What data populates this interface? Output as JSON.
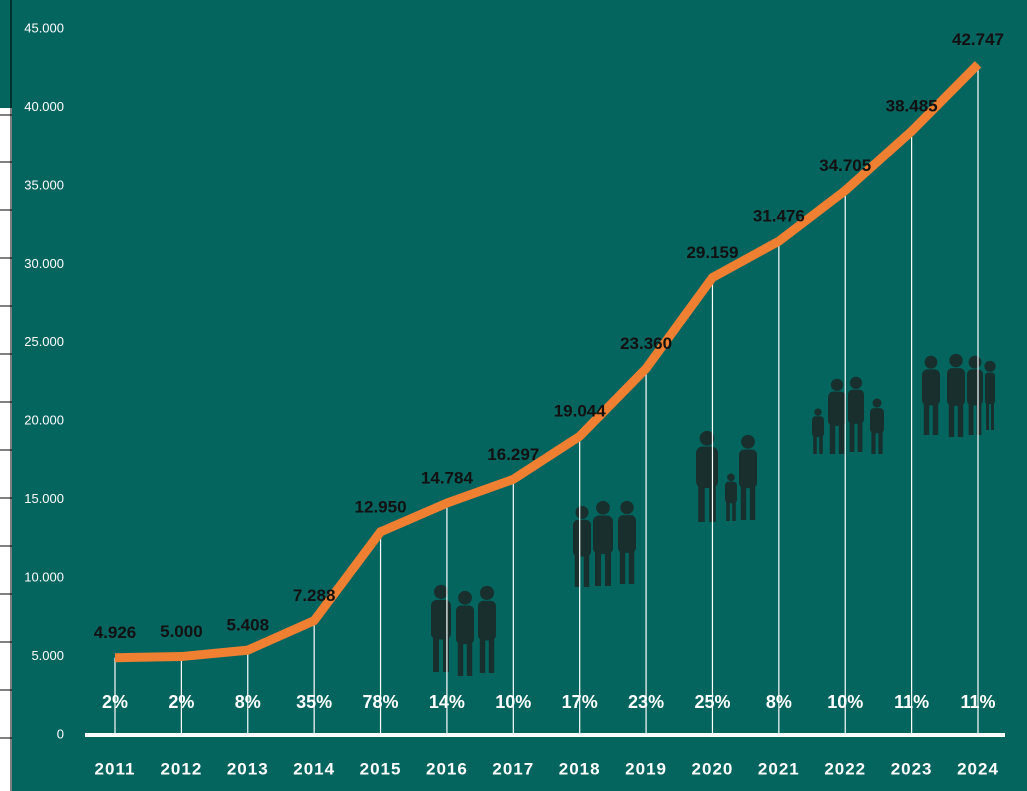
{
  "chart_data": {
    "type": "line",
    "background": "#04645e",
    "categories": [
      "2011",
      "2012",
      "2013",
      "2014",
      "2015",
      "2016",
      "2017",
      "2018",
      "2019",
      "2020",
      "2021",
      "2022",
      "2023",
      "2024"
    ],
    "series": [
      {
        "color": "#ef7f31",
        "values": [
          4926,
          5000,
          5408,
          7288,
          12950,
          14784,
          16297,
          19044,
          23360,
          29159,
          31476,
          34705,
          38485,
          42747
        ],
        "value_labels": [
          "4.926",
          "5.000",
          "5.408",
          "7.288",
          "12.950",
          "14.784",
          "16.297",
          "19.044",
          "23.360",
          "29.159",
          "31.476",
          "34.705",
          "38.485",
          "42.747"
        ]
      }
    ],
    "growth": {
      "values": [
        2,
        2,
        8,
        35,
        78,
        14,
        10,
        17,
        23,
        25,
        8,
        10,
        11,
        11
      ],
      "value_labels": [
        "2%",
        "2%",
        "8%",
        "35%",
        "78%",
        "14%",
        "10%",
        "17%",
        "23%",
        "25%",
        "8%",
        "10%",
        "11%",
        "11%"
      ]
    },
    "ylim": [
      0,
      45000
    ],
    "yticks": [
      0,
      {
        "value": 5000,
        "label": "5.000"
      },
      {
        "value": 10000,
        "label": "10.000"
      },
      {
        "value": 15000,
        "label": "15.000"
      },
      {
        "value": 20000,
        "label": "20.000"
      },
      {
        "value": 25000,
        "label": "25.000"
      },
      {
        "value": 30000,
        "label": "30.000"
      },
      {
        "value": 35000,
        "label": "35.000"
      },
      {
        "value": 40000,
        "label": "40.000"
      },
      {
        "value": 45000,
        "label": "45.000"
      }
    ]
  }
}
